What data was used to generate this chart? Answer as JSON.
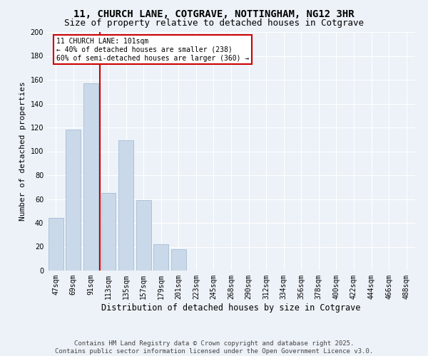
{
  "title": "11, CHURCH LANE, COTGRAVE, NOTTINGHAM, NG12 3HR",
  "subtitle": "Size of property relative to detached houses in Cotgrave",
  "xlabel": "Distribution of detached houses by size in Cotgrave",
  "ylabel": "Number of detached properties",
  "bar_color": "#c9d9ea",
  "bar_edgecolor": "#9ab4cc",
  "vline_color": "#cc0000",
  "vline_x": 2.5,
  "annotation_text": "11 CHURCH LANE: 101sqm\n← 40% of detached houses are smaller (238)\n60% of semi-detached houses are larger (360) →",
  "annotation_box_color": "#ffffff",
  "annotation_box_edgecolor": "#cc0000",
  "categories": [
    "47sqm",
    "69sqm",
    "91sqm",
    "113sqm",
    "135sqm",
    "157sqm",
    "179sqm",
    "201sqm",
    "223sqm",
    "245sqm",
    "268sqm",
    "290sqm",
    "312sqm",
    "334sqm",
    "356sqm",
    "378sqm",
    "400sqm",
    "422sqm",
    "444sqm",
    "466sqm",
    "488sqm"
  ],
  "values": [
    44,
    118,
    157,
    65,
    109,
    59,
    22,
    18,
    0,
    0,
    0,
    0,
    0,
    0,
    0,
    0,
    0,
    0,
    0,
    0,
    0
  ],
  "ylim": [
    0,
    200
  ],
  "yticks": [
    0,
    20,
    40,
    60,
    80,
    100,
    120,
    140,
    160,
    180,
    200
  ],
  "background_color": "#edf2f8",
  "plot_bg_color": "#edf2f8",
  "footer": "Contains HM Land Registry data © Crown copyright and database right 2025.\nContains public sector information licensed under the Open Government Licence v3.0.",
  "title_fontsize": 10,
  "subtitle_fontsize": 9,
  "xlabel_fontsize": 8.5,
  "ylabel_fontsize": 8,
  "tick_fontsize": 7,
  "footer_fontsize": 6.5
}
